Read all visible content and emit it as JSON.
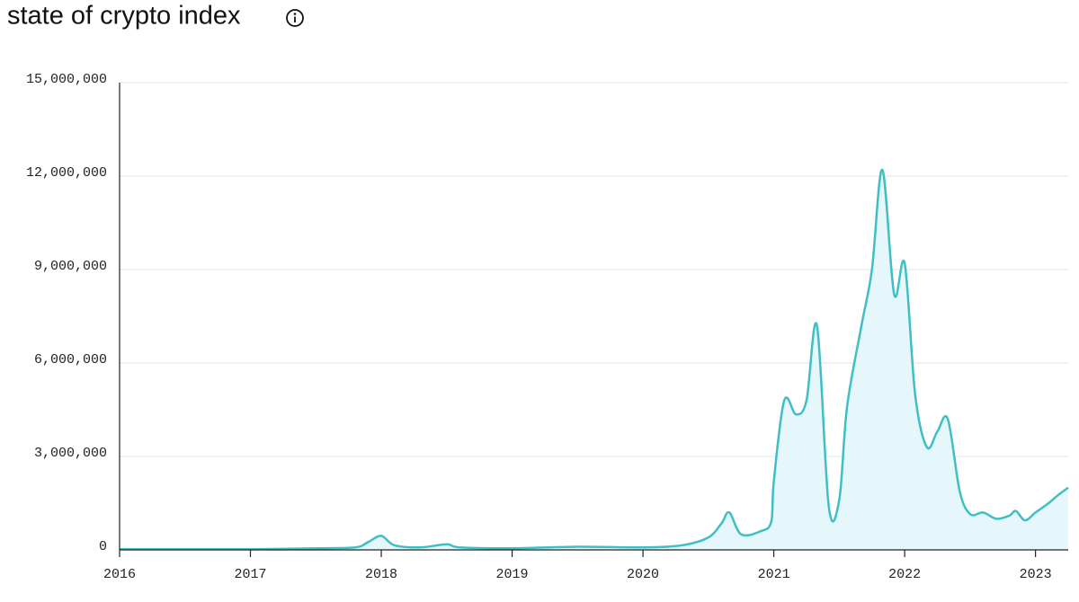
{
  "chart_data": {
    "type": "area",
    "title": "state of crypto index",
    "color": "#3fbfc4",
    "fill_color": "#e6f7fb",
    "grid": true,
    "xlim": [
      2016,
      2023.25
    ],
    "xticks": [
      2016,
      2017,
      2018,
      2019,
      2020,
      2021,
      2022,
      2023
    ],
    "ylim": [
      0,
      15000000
    ],
    "yticks": [
      0,
      {
        "value": 3000000,
        "label": "3,000,000"
      },
      {
        "value": 6000000,
        "label": "6,000,000"
      },
      {
        "value": 9000000,
        "label": "9,000,000"
      },
      {
        "value": 12000000,
        "label": "12,000,000"
      },
      {
        "value": 15000000,
        "label": "15,000,000"
      }
    ],
    "x": [
      2016.0,
      2016.5,
      2017.0,
      2017.5,
      2017.8,
      2017.9,
      2018.0,
      2018.1,
      2018.3,
      2018.5,
      2018.6,
      2019.0,
      2019.5,
      2020.0,
      2020.3,
      2020.5,
      2020.6,
      2020.66,
      2020.75,
      2020.9,
      2020.98,
      2021.0,
      2021.08,
      2021.17,
      2021.25,
      2021.33,
      2021.42,
      2021.5,
      2021.56,
      2021.67,
      2021.75,
      2021.83,
      2021.92,
      2022.0,
      2022.08,
      2022.17,
      2022.25,
      2022.33,
      2022.42,
      2022.5,
      2022.6,
      2022.7,
      2022.8,
      2022.85,
      2022.92,
      2023.0,
      2023.1,
      2023.17,
      2023.25
    ],
    "values": [
      20000,
      20000,
      20000,
      50000,
      80000,
      250000,
      450000,
      150000,
      80000,
      180000,
      80000,
      50000,
      100000,
      80000,
      150000,
      400000,
      850000,
      1200000,
      500000,
      600000,
      900000,
      2200000,
      4800000,
      4350000,
      4800000,
      7200000,
      1400000,
      1600000,
      4600000,
      7200000,
      9000000,
      12200000,
      8200000,
      9200000,
      5000000,
      3300000,
      3800000,
      4200000,
      1900000,
      1150000,
      1200000,
      1000000,
      1100000,
      1250000,
      950000,
      1200000,
      1500000,
      1750000,
      2000000
    ]
  }
}
